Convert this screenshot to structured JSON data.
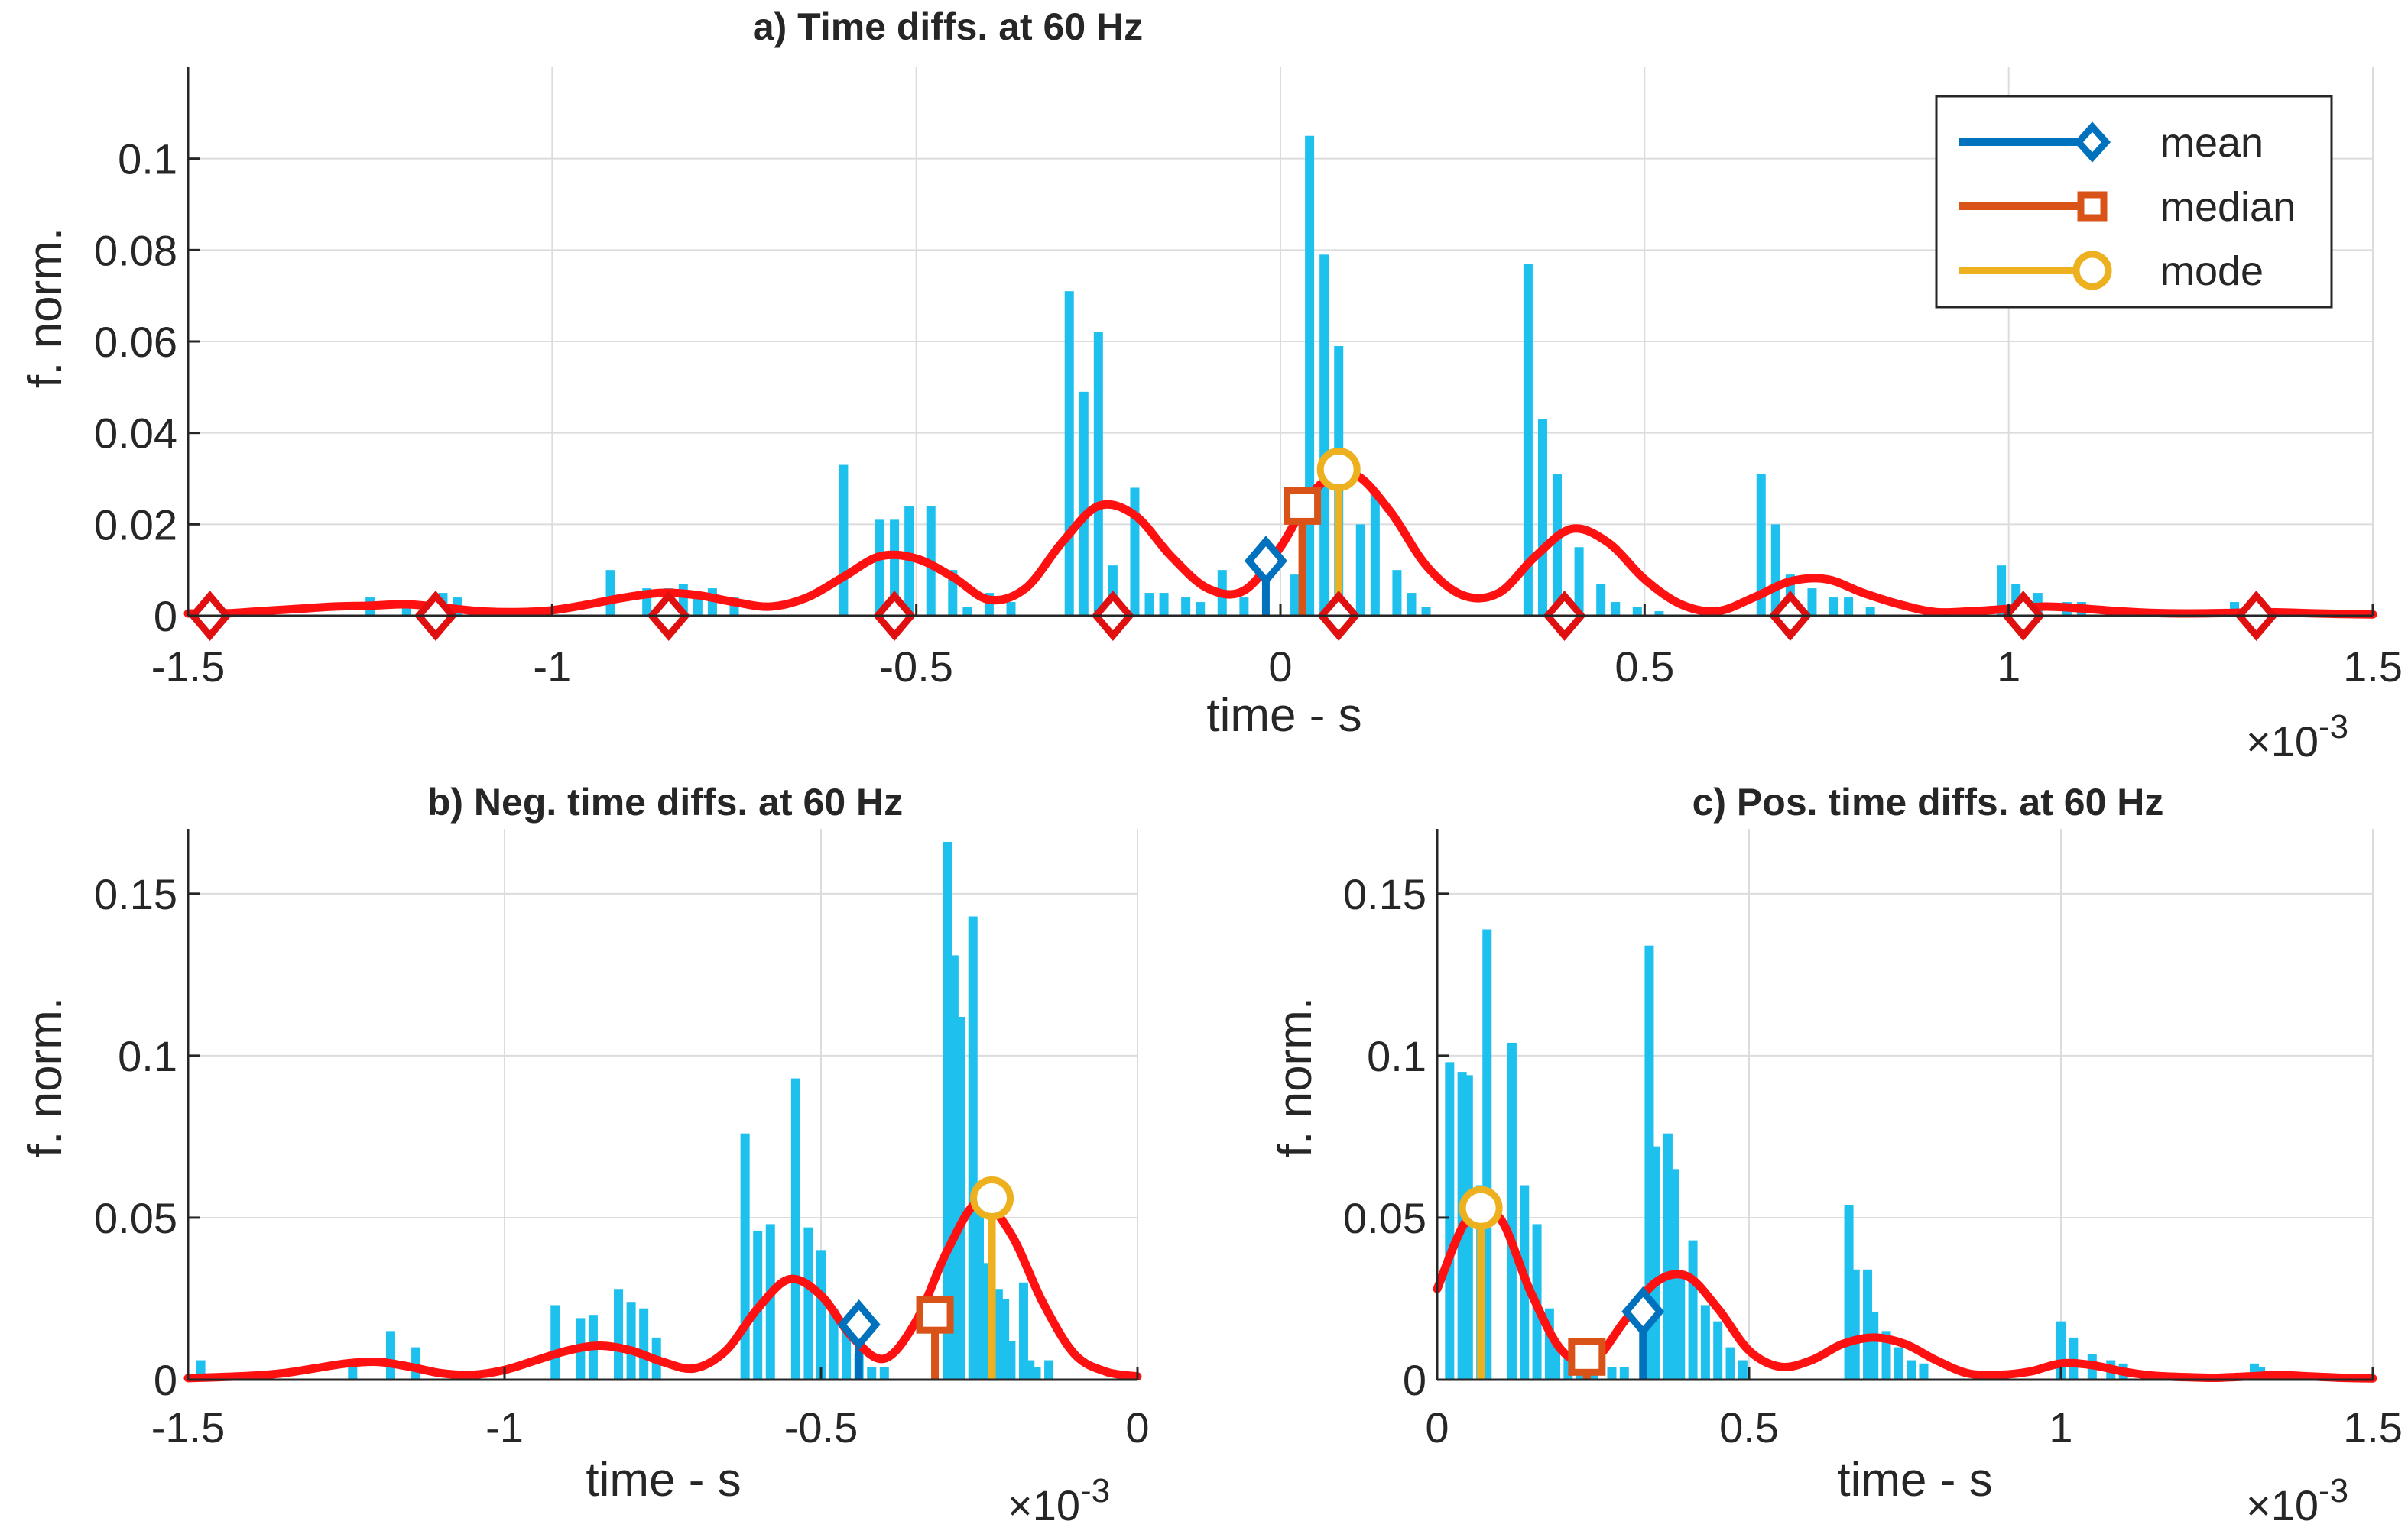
{
  "chart_data": [
    {
      "id": "a",
      "type": "bar",
      "title": "a) Time diffs. at 60 Hz",
      "xlabel": "time - s",
      "ylabel": "f. norm.",
      "x_exponent_base": "×10",
      "x_exponent_power": "-3",
      "xlim": [
        -1.5,
        1.5
      ],
      "ylim": [
        0,
        0.12
      ],
      "xticks": [
        -1.5,
        -1,
        -0.5,
        0,
        0.5,
        1,
        1.5
      ],
      "xtick_labels": [
        "-1.5",
        "-1",
        "-0.5",
        "0",
        "0.5",
        "1",
        "1.5"
      ],
      "yticks": [
        0,
        0.02,
        0.04,
        0.06,
        0.08,
        0.1
      ],
      "ytick_labels": [
        "0",
        "0.02",
        "0.04",
        "0.06",
        "0.08",
        "0.1"
      ],
      "grid": true,
      "legend_position": "top-right",
      "histogram": {
        "x": [
          -1.25,
          -1.2,
          -1.15,
          -1.13,
          -0.92,
          -0.87,
          -0.84,
          -0.82,
          -0.8,
          -0.78,
          -0.75,
          -0.6,
          -0.55,
          -0.53,
          -0.51,
          -0.48,
          -0.45,
          -0.43,
          -0.4,
          -0.37,
          -0.29,
          -0.27,
          -0.25,
          -0.23,
          -0.2,
          -0.18,
          -0.16,
          -0.13,
          -0.11,
          -0.08,
          -0.05,
          0.02,
          0.04,
          0.06,
          0.08,
          0.11,
          0.13,
          0.16,
          0.18,
          0.2,
          0.34,
          0.36,
          0.38,
          0.41,
          0.44,
          0.46,
          0.49,
          0.52,
          0.66,
          0.68,
          0.7,
          0.73,
          0.76,
          0.78,
          0.81,
          0.99,
          1.01,
          1.04,
          1.08,
          1.1,
          1.31,
          1.33
        ],
        "values": [
          0.004,
          0.002,
          0.005,
          0.004,
          0.01,
          0.006,
          0.006,
          0.007,
          0.005,
          0.006,
          0.004,
          0.033,
          0.021,
          0.021,
          0.024,
          0.024,
          0.01,
          0.002,
          0.005,
          0.003,
          0.071,
          0.049,
          0.062,
          0.011,
          0.028,
          0.005,
          0.005,
          0.004,
          0.003,
          0.01,
          0.004,
          0.009,
          0.105,
          0.079,
          0.059,
          0.02,
          0.027,
          0.01,
          0.005,
          0.002,
          0.077,
          0.043,
          0.031,
          0.015,
          0.007,
          0.003,
          0.002,
          0.001,
          0.031,
          0.02,
          0.009,
          0.006,
          0.004,
          0.004,
          0.002,
          0.011,
          0.007,
          0.005,
          0.003,
          0.003,
          0.003,
          0.002
        ]
      },
      "fit_curve": {
        "name": "fit",
        "x": [
          -1.5,
          -1.45,
          -1.4,
          -1.35,
          -1.3,
          -1.25,
          -1.2,
          -1.15,
          -1.1,
          -1.05,
          -1.0,
          -0.95,
          -0.9,
          -0.85,
          -0.8,
          -0.75,
          -0.7,
          -0.65,
          -0.6,
          -0.55,
          -0.5,
          -0.45,
          -0.4,
          -0.35,
          -0.3,
          -0.25,
          -0.2,
          -0.15,
          -0.1,
          -0.05,
          0.0,
          0.05,
          0.1,
          0.15,
          0.2,
          0.25,
          0.3,
          0.35,
          0.4,
          0.45,
          0.5,
          0.55,
          0.6,
          0.65,
          0.7,
          0.75,
          0.8,
          0.85,
          0.9,
          0.95,
          1.0,
          1.05,
          1.1,
          1.15,
          1.2,
          1.25,
          1.3,
          1.35,
          1.4,
          1.45,
          1.5
        ],
        "values": [
          0.0005,
          0.0005,
          0.001,
          0.0015,
          0.002,
          0.0022,
          0.0025,
          0.0018,
          0.001,
          0.0008,
          0.0012,
          0.0025,
          0.004,
          0.005,
          0.0045,
          0.003,
          0.002,
          0.004,
          0.0085,
          0.013,
          0.0125,
          0.0085,
          0.0035,
          0.006,
          0.016,
          0.024,
          0.022,
          0.013,
          0.006,
          0.0055,
          0.015,
          0.028,
          0.031,
          0.023,
          0.011,
          0.0045,
          0.005,
          0.013,
          0.019,
          0.016,
          0.008,
          0.0025,
          0.001,
          0.004,
          0.0075,
          0.008,
          0.005,
          0.0025,
          0.0008,
          0.001,
          0.0015,
          0.002,
          0.0016,
          0.001,
          0.0006,
          0.0005,
          0.0006,
          0.0008,
          0.0006,
          0.0004,
          0.0003
        ]
      },
      "knot_markers": {
        "x": [
          -1.47,
          -1.16,
          -0.84,
          -0.53,
          -0.23,
          0.08,
          0.39,
          0.7,
          1.02,
          1.34
        ],
        "y": [
          0,
          0,
          0,
          0,
          0,
          0,
          0,
          0,
          0,
          0
        ]
      },
      "stats": [
        {
          "name": "mean",
          "x": -0.02,
          "y": 0.012,
          "color": "#0072bd",
          "marker": "diamond"
        },
        {
          "name": "median",
          "x": 0.03,
          "y": 0.024,
          "color": "#d95319",
          "marker": "square"
        },
        {
          "name": "mode",
          "x": 0.08,
          "y": 0.032,
          "color": "#edb120",
          "marker": "circle"
        }
      ]
    },
    {
      "id": "b",
      "type": "bar",
      "title": "b) Neg. time diffs. at 60 Hz",
      "xlabel": "time - s",
      "ylabel": "f. norm.",
      "x_exponent_base": "×10",
      "x_exponent_power": "-3",
      "xlim": [
        -1.5,
        0
      ],
      "ylim": [
        0,
        0.17
      ],
      "xticks": [
        -1.5,
        -1,
        -0.5,
        0
      ],
      "xtick_labels": [
        "-1.5",
        "-1",
        "-0.5",
        "0"
      ],
      "yticks": [
        0,
        0.05,
        0.1,
        0.15
      ],
      "ytick_labels": [
        "0",
        "0.05",
        "0.1",
        "0.15"
      ],
      "grid": true,
      "histogram": {
        "x": [
          -1.48,
          -1.24,
          -1.18,
          -1.14,
          -0.92,
          -0.88,
          -0.86,
          -0.82,
          -0.8,
          -0.78,
          -0.76,
          -0.62,
          -0.6,
          -0.58,
          -0.54,
          -0.52,
          -0.5,
          -0.48,
          -0.46,
          -0.44,
          -0.42,
          -0.4,
          -0.3,
          -0.29,
          -0.28,
          -0.26,
          -0.25,
          -0.24,
          -0.22,
          -0.21,
          -0.2,
          -0.18,
          -0.17,
          -0.16,
          -0.14
        ],
        "values": [
          0.006,
          0.005,
          0.015,
          0.01,
          0.023,
          0.019,
          0.02,
          0.028,
          0.024,
          0.022,
          0.013,
          0.076,
          0.046,
          0.048,
          0.093,
          0.047,
          0.04,
          0.022,
          0.015,
          0.008,
          0.004,
          0.004,
          0.166,
          0.131,
          0.112,
          0.143,
          0.052,
          0.036,
          0.028,
          0.025,
          0.012,
          0.03,
          0.006,
          0.004,
          0.006
        ]
      },
      "fit_curve": {
        "name": "fit",
        "x": [
          -1.5,
          -1.45,
          -1.4,
          -1.35,
          -1.3,
          -1.25,
          -1.2,
          -1.15,
          -1.1,
          -1.05,
          -1.0,
          -0.95,
          -0.9,
          -0.85,
          -0.8,
          -0.75,
          -0.7,
          -0.65,
          -0.6,
          -0.55,
          -0.5,
          -0.45,
          -0.4,
          -0.35,
          -0.3,
          -0.25,
          -0.2,
          -0.15,
          -0.1,
          -0.05,
          0.0
        ],
        "values": [
          0.0005,
          0.0008,
          0.0012,
          0.002,
          0.0035,
          0.005,
          0.0055,
          0.004,
          0.002,
          0.0015,
          0.003,
          0.006,
          0.009,
          0.0105,
          0.009,
          0.0055,
          0.0035,
          0.009,
          0.022,
          0.031,
          0.026,
          0.013,
          0.0065,
          0.018,
          0.04,
          0.055,
          0.045,
          0.024,
          0.008,
          0.0025,
          0.001
        ]
      },
      "stats": [
        {
          "name": "mean",
          "x": -0.44,
          "y": 0.017,
          "color": "#0072bd",
          "marker": "diamond"
        },
        {
          "name": "median",
          "x": -0.32,
          "y": 0.02,
          "color": "#d95319",
          "marker": "square"
        },
        {
          "name": "mode",
          "x": -0.23,
          "y": 0.056,
          "color": "#edb120",
          "marker": "circle"
        }
      ]
    },
    {
      "id": "c",
      "type": "bar",
      "title": "c) Pos. time diffs. at 60 Hz",
      "xlabel": "time - s",
      "ylabel": "f. norm.",
      "x_exponent_base": "×10",
      "x_exponent_power": "-3",
      "xlim": [
        0,
        1.5
      ],
      "ylim": [
        0,
        0.17
      ],
      "xticks": [
        0,
        0.5,
        1,
        1.5
      ],
      "xtick_labels": [
        "0",
        "0.5",
        "1",
        "1.5"
      ],
      "yticks": [
        0,
        0.05,
        0.1,
        0.15
      ],
      "ytick_labels": [
        "0",
        "0.05",
        "0.1",
        "0.15"
      ],
      "grid": true,
      "histogram": {
        "x": [
          0.02,
          0.04,
          0.05,
          0.07,
          0.08,
          0.12,
          0.14,
          0.16,
          0.18,
          0.19,
          0.21,
          0.23,
          0.25,
          0.28,
          0.3,
          0.34,
          0.35,
          0.37,
          0.38,
          0.39,
          0.41,
          0.43,
          0.45,
          0.47,
          0.49,
          0.66,
          0.67,
          0.69,
          0.7,
          0.72,
          0.74,
          0.76,
          0.78,
          1.0,
          1.02,
          1.05,
          1.08,
          1.1,
          1.31,
          1.32
        ],
        "values": [
          0.098,
          0.095,
          0.094,
          0.06,
          0.139,
          0.104,
          0.06,
          0.048,
          0.022,
          0.01,
          0.008,
          0.006,
          0.006,
          0.004,
          0.004,
          0.134,
          0.072,
          0.076,
          0.065,
          0.033,
          0.043,
          0.023,
          0.018,
          0.01,
          0.006,
          0.054,
          0.034,
          0.034,
          0.021,
          0.015,
          0.01,
          0.006,
          0.005,
          0.018,
          0.013,
          0.008,
          0.006,
          0.005,
          0.005,
          0.004
        ]
      },
      "fit_curve": {
        "name": "fit",
        "x": [
          0.0,
          0.05,
          0.1,
          0.15,
          0.2,
          0.25,
          0.3,
          0.35,
          0.4,
          0.45,
          0.5,
          0.55,
          0.6,
          0.65,
          0.7,
          0.75,
          0.8,
          0.85,
          0.9,
          0.95,
          1.0,
          1.05,
          1.1,
          1.15,
          1.2,
          1.25,
          1.3,
          1.35,
          1.4,
          1.45,
          1.5
        ],
        "values": [
          0.028,
          0.05,
          0.05,
          0.027,
          0.009,
          0.006,
          0.018,
          0.03,
          0.032,
          0.022,
          0.009,
          0.004,
          0.006,
          0.011,
          0.013,
          0.011,
          0.006,
          0.002,
          0.0015,
          0.0025,
          0.005,
          0.0045,
          0.0025,
          0.0012,
          0.0008,
          0.0006,
          0.001,
          0.0014,
          0.001,
          0.0006,
          0.0004
        ]
      },
      "stats": [
        {
          "name": "mean",
          "x": 0.33,
          "y": 0.021,
          "color": "#0072bd",
          "marker": "diamond"
        },
        {
          "name": "median",
          "x": 0.24,
          "y": 0.007,
          "color": "#d95319",
          "marker": "square"
        },
        {
          "name": "mode",
          "x": 0.07,
          "y": 0.053,
          "color": "#edb120",
          "marker": "circle"
        }
      ]
    }
  ],
  "legend": {
    "items": [
      {
        "label": "mean",
        "color": "#0072bd",
        "marker": "diamond"
      },
      {
        "label": "median",
        "color": "#d95319",
        "marker": "square"
      },
      {
        "label": "mode",
        "color": "#edb120",
        "marker": "circle"
      }
    ]
  },
  "colors": {
    "bars": "#1ec0ee",
    "fit": "#ff1111",
    "knots": "#e01010",
    "grid": "#dcdcdc",
    "axis": "#262626"
  }
}
